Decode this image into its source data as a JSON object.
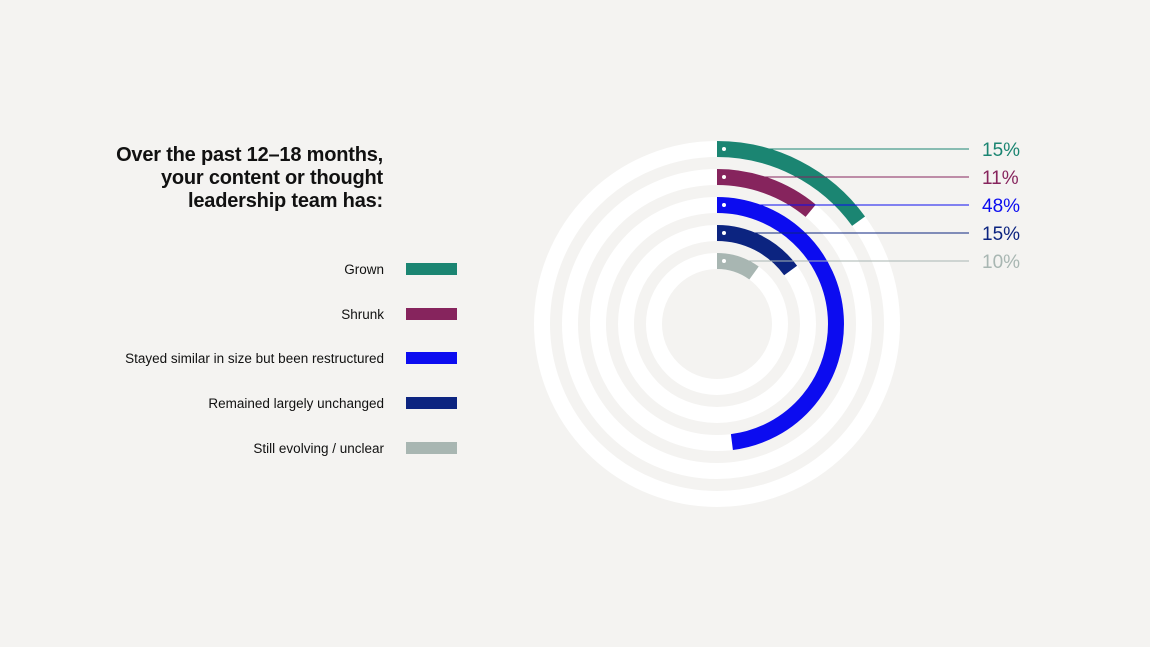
{
  "title_lines": [
    "Over the past 12–18 months,",
    "your content or thought",
    "leadership team has:"
  ],
  "colors": {
    "background": "#f4f3f1",
    "track": "#ffffff",
    "grown": "#1b8572",
    "shrunk": "#86245d",
    "restructured": "#0c0cf0",
    "unchanged": "#0c2480",
    "unclear": "#a8b6b2"
  },
  "legend": [
    {
      "label": "Grown",
      "color": "#1b8572"
    },
    {
      "label": "Shrunk",
      "color": "#86245d"
    },
    {
      "label": "Stayed similar in size but been restructured",
      "color": "#0c0cf0"
    },
    {
      "label": "Remained largely unchanged",
      "color": "#0c2480"
    },
    {
      "label": "Still evolving / unclear",
      "color": "#a8b6b2"
    }
  ],
  "chart_data": {
    "type": "radial-bar",
    "title": "Over the past 12–18 months, your content or thought leadership team has:",
    "categories": [
      "Grown",
      "Shrunk",
      "Stayed similar in size but been restructured",
      "Remained largely unchanged",
      "Still evolving / unclear"
    ],
    "values": [
      15,
      11,
      48,
      15,
      10
    ],
    "value_labels": [
      "15%",
      "11%",
      "48%",
      "15%",
      "10%"
    ],
    "unit": "%",
    "colors": [
      "#1b8572",
      "#86245d",
      "#0c0cf0",
      "#0c2480",
      "#a8b6b2"
    ],
    "legend_placement": "left"
  }
}
